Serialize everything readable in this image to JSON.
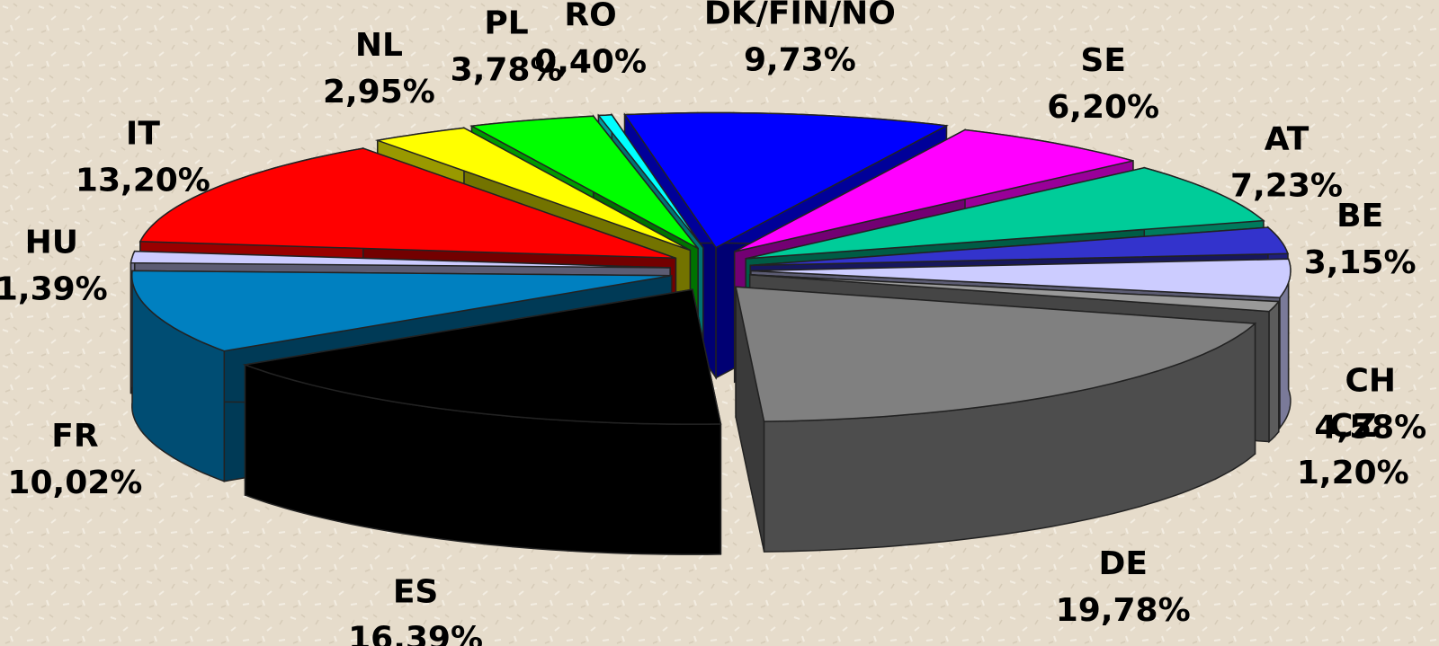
{
  "chart_data": {
    "type": "pie",
    "categories": [
      "DK/FIN/NO",
      "SE",
      "AT",
      "BE",
      "CH",
      "CZ",
      "DE",
      "ES",
      "FR",
      "HU",
      "IT",
      "NL",
      "PL",
      "RO"
    ],
    "values": [
      9.73,
      6.2,
      7.23,
      3.15,
      4.58,
      1.2,
      19.78,
      16.39,
      10.02,
      1.39,
      13.2,
      2.95,
      3.78,
      0.4
    ],
    "value_labels": [
      "9,73%",
      "6,20%",
      "7,23%",
      "3,15%",
      "4,58%",
      "1,20%",
      "19,78%",
      "16,39%",
      "10,02%",
      "1,39%",
      "13,20%",
      "2,95%",
      "3,78%",
      "0,40%"
    ],
    "colors": [
      "#0000ff",
      "#ff00ff",
      "#00cc99",
      "#3333cc",
      "#ccccff",
      "#999999",
      "#808080",
      "#000000",
      "#0080c0",
      "#ccccff",
      "#ff0000",
      "#ffff00",
      "#00ff00",
      "#00ffff"
    ]
  }
}
